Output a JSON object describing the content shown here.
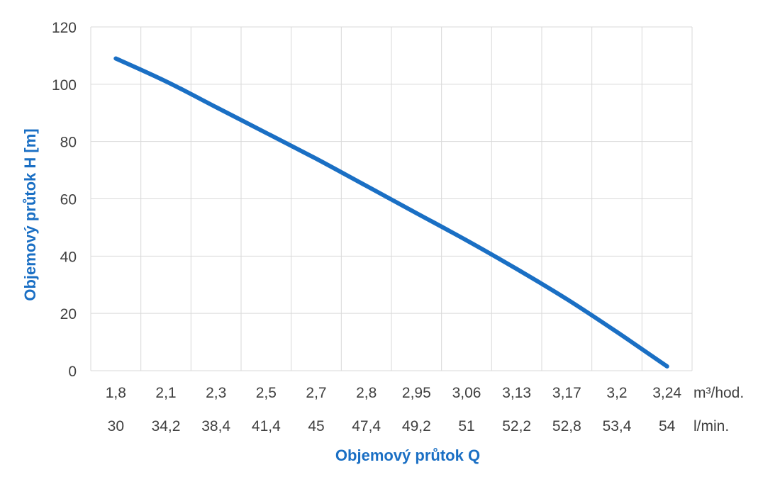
{
  "chart_data": {
    "type": "line",
    "xlabel": "Objemový průtok Q",
    "ylabel": "Objemový průtok H [m]",
    "ylim": [
      0,
      120
    ],
    "yticks": [
      "0",
      "20",
      "40",
      "60",
      "80",
      "100",
      "120"
    ],
    "x_m3h": [
      "1,8",
      "2,1",
      "2,3",
      "2,5",
      "2,7",
      "2,8",
      "2,95",
      "3,06",
      "3,13",
      "3,17",
      "3,2",
      "3,24"
    ],
    "x_lmin": [
      "30",
      "34,2",
      "38,4",
      "41,4",
      "45",
      "47,4",
      "49,2",
      "51",
      "52,2",
      "52,8",
      "53,4",
      "54"
    ],
    "unit_m3h": "m³/hod.",
    "unit_lmin": "l/min.",
    "grid": true,
    "series": [
      {
        "values": [
          109,
          101,
          92,
          83,
          74,
          64.5,
          55,
          45.5,
          35.5,
          25,
          13.5,
          1.5
        ]
      }
    ],
    "line_color": "#1a6fc4"
  }
}
